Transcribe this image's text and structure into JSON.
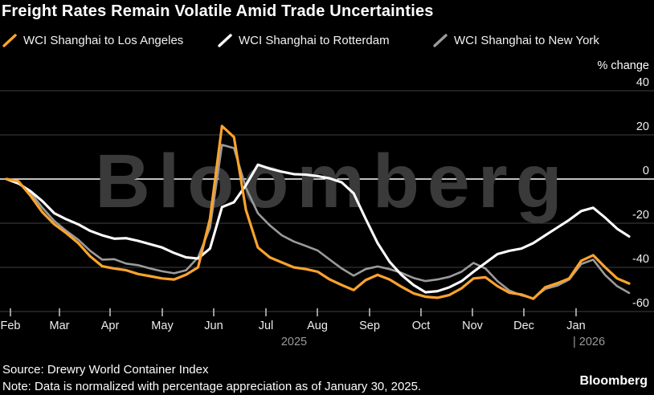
{
  "header": {
    "title": "Freight Rates Remain Volatile Amid Trade Uncertainties"
  },
  "legend": {
    "items": [
      {
        "label": "WCI Shanghai to Los Angeles",
        "color": "#fca32d"
      },
      {
        "label": "WCI Shanghai to Rotterdam",
        "color": "#ffffff"
      },
      {
        "label": "WCI Shanghai to New York",
        "color": "#9b9b9b"
      }
    ]
  },
  "watermark": "Bloomberg",
  "chart_data": {
    "type": "line",
    "title": "Freight Rates Remain Volatile Amid Trade Uncertainties",
    "ylabel": "% change",
    "ylim": [
      -60,
      40
    ],
    "yticks": [
      40,
      20,
      0,
      -20,
      -40,
      -60
    ],
    "grid": true,
    "legend_position": "top",
    "x_unit": "weekly, Feb 2025 - Jan 2026",
    "x_tick_labels": [
      "Feb",
      "Mar",
      "Apr",
      "May",
      "Jun",
      "Jul",
      "Aug",
      "Sep",
      "Oct",
      "Nov",
      "Dec",
      "Jan"
    ],
    "year_labels": [
      "2025",
      "| 2026"
    ],
    "zero_baseline": 0,
    "colors": {
      "background": "#000000",
      "grid": "#3f3f3f",
      "zero_line": "#ffffff",
      "watermark": "#3a3a3a"
    },
    "series": [
      {
        "name": "WCI Shanghai to Los Angeles",
        "color": "#fca32d",
        "values": [
          0,
          -1,
          -7.5,
          -15,
          -20.5,
          -24.5,
          -29,
          -35,
          -39.5,
          -40.5,
          -41.3,
          -43,
          -44,
          -45,
          -45.5,
          -43.3,
          -40,
          -18,
          24,
          19,
          -14,
          -31,
          -35.5,
          -37.8,
          -40,
          -40.8,
          -42,
          -45.5,
          -48,
          -50.3,
          -45.8,
          -43.4,
          -45.5,
          -48.8,
          -51.8,
          -53.3,
          -53.8,
          -52.5,
          -49.5,
          -45,
          -44.5,
          -48.5,
          -51.5,
          -52.3,
          -54.2,
          -49,
          -47.2,
          -45,
          -37,
          -34.5,
          -40,
          -45,
          -47.3
        ]
      },
      {
        "name": "WCI Shanghai to Rotterdam",
        "color": "#ffffff",
        "values": [
          0,
          -2,
          -5.5,
          -10,
          -15.5,
          -18.2,
          -20.5,
          -23.5,
          -25.5,
          -27,
          -26.8,
          -28,
          -29.5,
          -31,
          -33.5,
          -35.5,
          -36,
          -31.5,
          -12.7,
          -10.5,
          -2.8,
          6.5,
          4.7,
          3.3,
          2.2,
          2,
          1.3,
          0.3,
          -1.5,
          -6.5,
          -18,
          -29,
          -37.5,
          -43.5,
          -48,
          -51.3,
          -50.8,
          -49,
          -46.3,
          -42,
          -38,
          -34,
          -32.5,
          -31.5,
          -29,
          -25.5,
          -22,
          -18.5,
          -14.5,
          -13,
          -17.5,
          -22.5,
          -26
        ]
      },
      {
        "name": "WCI Shanghai to New York",
        "color": "#9b9b9b",
        "values": [
          0,
          -1.5,
          -6,
          -13,
          -19,
          -23.5,
          -27.5,
          -32.5,
          -36.5,
          -36.3,
          -38.3,
          -39,
          -40.5,
          -41.8,
          -42.7,
          -41.3,
          -35.5,
          -22,
          15.5,
          14,
          -4,
          -15.5,
          -21,
          -25.5,
          -28.3,
          -30.3,
          -32.4,
          -36.5,
          -40.5,
          -43.8,
          -40.8,
          -39.6,
          -40.8,
          -42.5,
          -44.8,
          -46.2,
          -45.5,
          -44.3,
          -42,
          -38,
          -40.5,
          -46.2,
          -50.5,
          -52.7,
          -54,
          -49.8,
          -48.3,
          -45.5,
          -38.5,
          -36.5,
          -43.5,
          -48.5,
          -51.6
        ]
      }
    ]
  },
  "footer": {
    "source": "Source: Drewry World Container Index",
    "note": "Note: Data is normalized with percentage appreciation as of January 30, 2025.",
    "brand": "Bloomberg"
  }
}
